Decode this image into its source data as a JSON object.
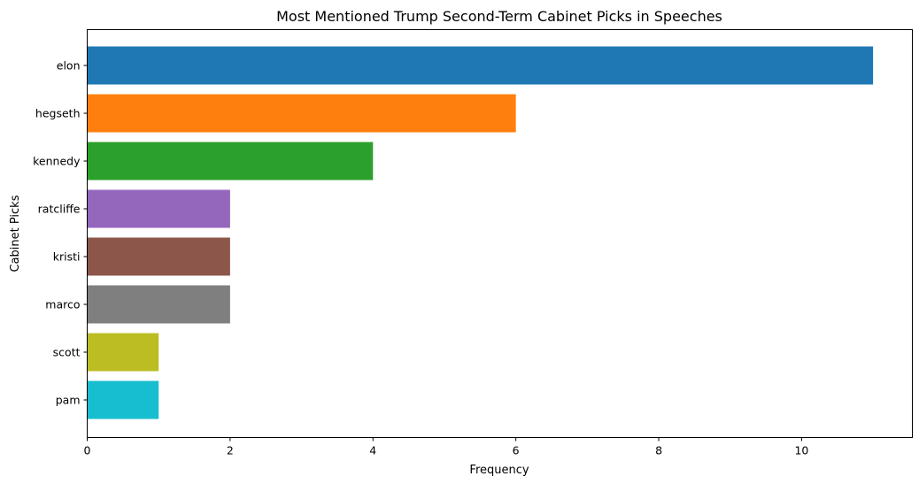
{
  "chart_data": {
    "type": "bar",
    "orientation": "horizontal",
    "title": "Most Mentioned Trump Second-Term Cabinet Picks in Speeches",
    "xlabel": "Frequency",
    "ylabel": "Cabinet Picks",
    "xlim": [
      0,
      11.55
    ],
    "xticks": [
      0,
      2,
      4,
      6,
      8,
      10
    ],
    "grid": false,
    "categories": [
      "elon",
      "hegseth",
      "kennedy",
      "ratcliffe",
      "kristi",
      "marco",
      "scott",
      "pam"
    ],
    "values": [
      11,
      6,
      4,
      2,
      2,
      2,
      1,
      1
    ],
    "colors": [
      "#1f77b4",
      "#ff7f0e",
      "#2ca02c",
      "#9467bd",
      "#8c564b",
      "#7f7f7f",
      "#bcbd22",
      "#17becf"
    ]
  }
}
